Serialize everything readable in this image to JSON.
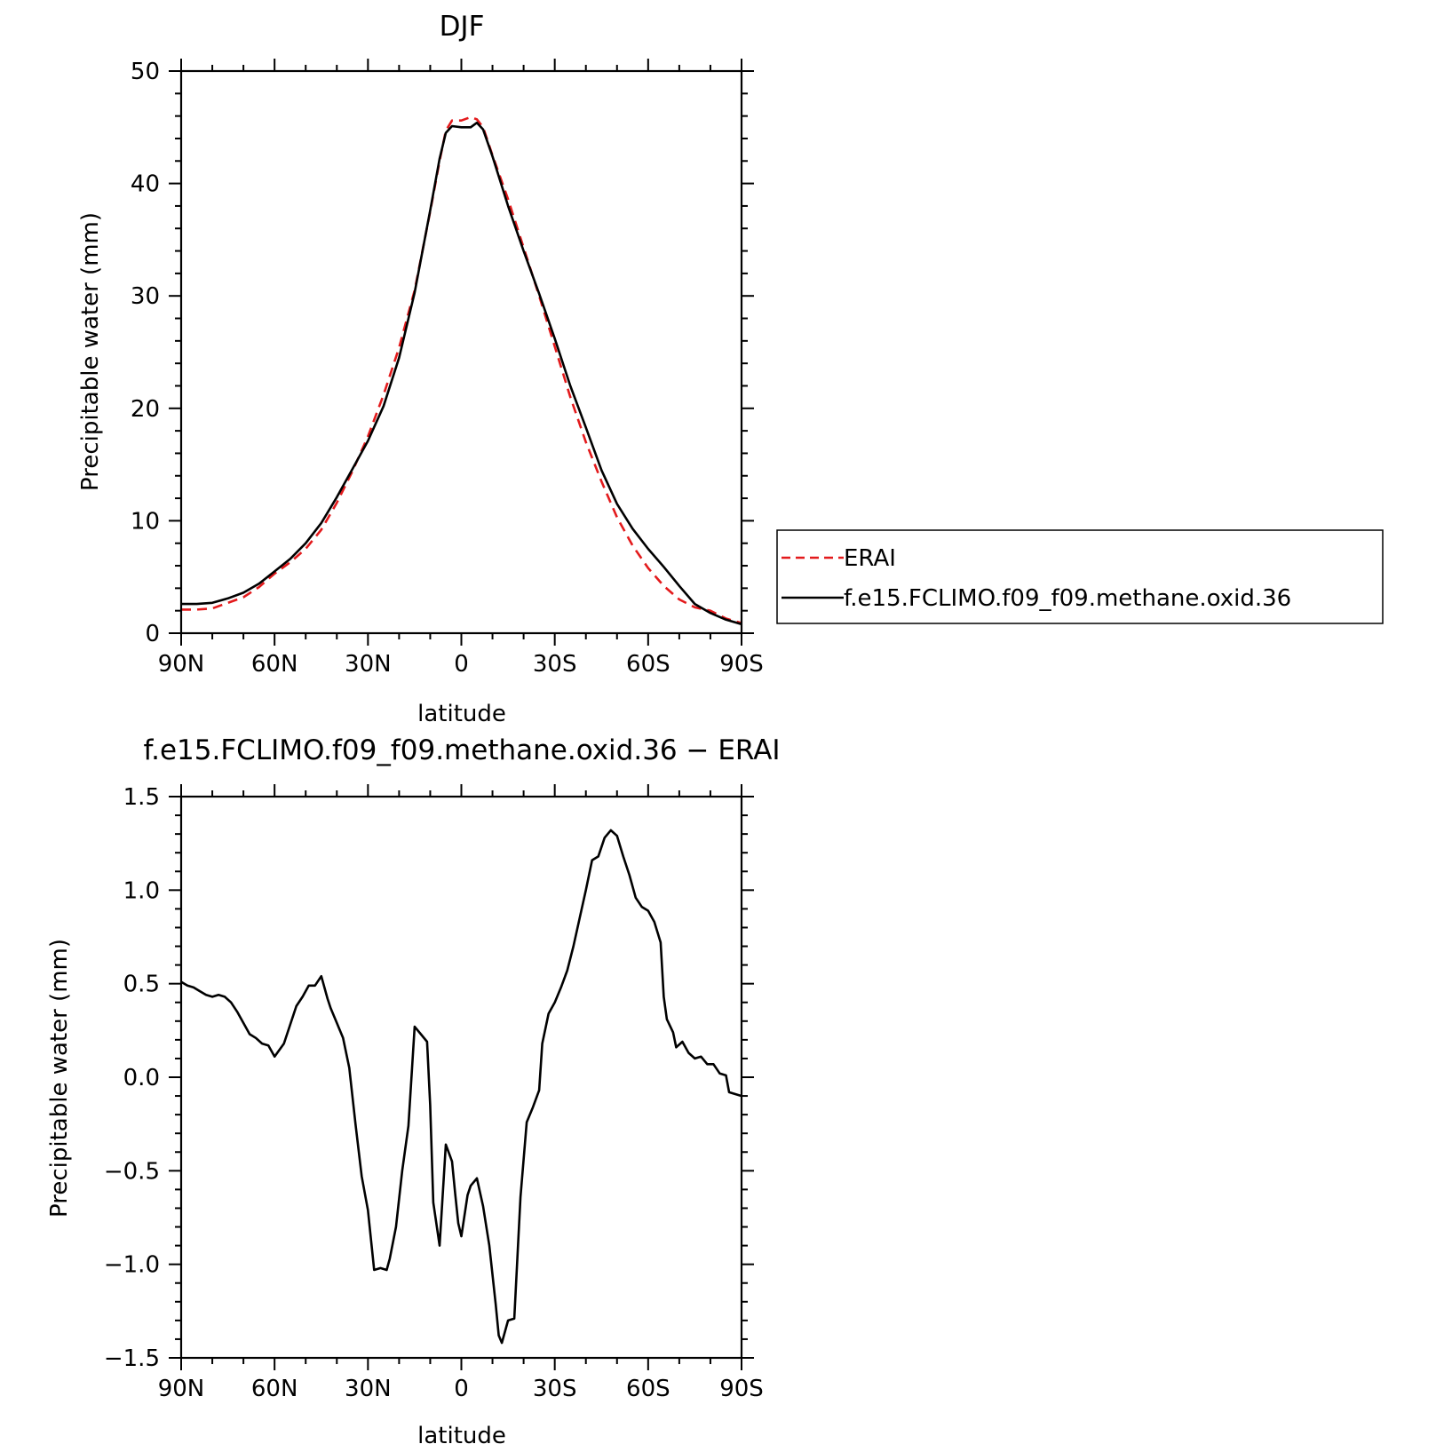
{
  "chart_data": [
    {
      "type": "line",
      "title": "DJF",
      "xlabel": "latitude",
      "ylabel": "Precipitable water (mm)",
      "xlim": [
        90,
        -90
      ],
      "ylim": [
        0,
        50
      ],
      "x_ticks": [
        90,
        60,
        30,
        0,
        -30,
        -60,
        -90
      ],
      "x_tick_labels": [
        "90N",
        "60N",
        "30N",
        "0",
        "30S",
        "60S",
        "90S"
      ],
      "y_ticks": [
        0,
        10,
        20,
        30,
        40,
        50
      ],
      "y_tick_labels": [
        "0",
        "10",
        "20",
        "30",
        "40",
        "50"
      ],
      "legend_position": "right",
      "series": [
        {
          "name": "ERAI",
          "color": "#e31a1c",
          "dash": "dashed",
          "x": [
            90,
            85,
            80,
            75,
            70,
            65,
            60,
            55,
            50,
            45,
            40,
            35,
            30,
            25,
            20,
            15,
            10,
            7,
            5,
            3,
            0,
            -3,
            -5,
            -7,
            -10,
            -15,
            -20,
            -25,
            -30,
            -35,
            -40,
            -45,
            -50,
            -55,
            -60,
            -65,
            -70,
            -75,
            -80,
            -85,
            -90
          ],
          "y": [
            2.1,
            2.1,
            2.2,
            2.7,
            3.2,
            4.1,
            5.3,
            6.3,
            7.5,
            9.2,
            11.6,
            14.4,
            17.5,
            21.2,
            25.4,
            30.5,
            37.5,
            42.0,
            44.7,
            45.6,
            45.6,
            45.9,
            45.7,
            45.0,
            42.5,
            38.6,
            34.3,
            30.0,
            25.5,
            21.0,
            17.0,
            13.5,
            10.3,
            7.8,
            5.8,
            4.2,
            3.0,
            2.3,
            2.0,
            1.3,
            0.9
          ]
        },
        {
          "name": "f.e15.FCLIMO.f09_f09.methane.oxid.36",
          "color": "#000000",
          "dash": "solid",
          "x": [
            90,
            85,
            80,
            75,
            70,
            65,
            60,
            55,
            50,
            45,
            40,
            35,
            30,
            25,
            20,
            15,
            10,
            7,
            5,
            3,
            0,
            -3,
            -5,
            -7,
            -10,
            -15,
            -20,
            -25,
            -30,
            -35,
            -40,
            -45,
            -50,
            -55,
            -60,
            -65,
            -70,
            -75,
            -80,
            -85,
            -90
          ],
          "y": [
            2.6,
            2.6,
            2.7,
            3.1,
            3.6,
            4.4,
            5.5,
            6.6,
            8.0,
            9.8,
            12.1,
            14.6,
            17.1,
            20.2,
            24.5,
            30.3,
            37.6,
            42.2,
            44.5,
            45.1,
            45.0,
            45.0,
            45.4,
            44.8,
            42.4,
            38.0,
            34.0,
            30.2,
            26.2,
            22.0,
            18.3,
            14.5,
            11.5,
            9.3,
            7.5,
            5.9,
            4.2,
            2.6,
            1.8,
            1.2,
            0.8
          ]
        }
      ]
    },
    {
      "type": "line",
      "title": "f.e15.FCLIMO.f09_f09.methane.oxid.36 − ERAI",
      "xlabel": "latitude",
      "ylabel": "Precipitable water (mm)",
      "xlim": [
        90,
        -90
      ],
      "ylim": [
        -1.5,
        1.5
      ],
      "x_ticks": [
        90,
        60,
        30,
        0,
        -30,
        -60,
        -90
      ],
      "x_tick_labels": [
        "90N",
        "60N",
        "30N",
        "0",
        "30S",
        "60S",
        "90S"
      ],
      "y_ticks": [
        1.5,
        1.0,
        0.5,
        0.0,
        -0.5,
        -1.0,
        -1.5
      ],
      "y_tick_labels": [
        "1.5",
        "1.0",
        "0.5",
        "0.0",
        "−0.5",
        "−1.0",
        "−1.5"
      ],
      "series": [
        {
          "color": "#000000",
          "dash": "solid",
          "x": [
            90,
            88,
            86,
            84,
            82,
            80,
            78,
            76,
            74,
            72,
            70,
            68,
            66,
            64,
            62,
            60,
            57,
            55,
            53,
            51,
            49,
            47,
            45,
            43,
            42,
            40,
            38,
            36,
            34,
            32,
            30,
            28,
            26,
            24,
            23,
            21,
            19,
            17,
            15,
            13,
            11,
            10,
            9,
            7,
            5,
            3,
            2,
            1,
            0,
            -2,
            -3,
            -5,
            -7,
            -9,
            -11,
            -12,
            -13,
            -15,
            -17,
            -19,
            -21,
            -23,
            -25,
            -26,
            -28,
            -30,
            -32,
            -34,
            -36,
            -38,
            -40,
            -42,
            -44,
            -46,
            -48,
            -50,
            -52,
            -54,
            -56,
            -58,
            -60,
            -62,
            -64,
            -65,
            -66,
            -68,
            -69,
            -71,
            -73,
            -75,
            -77,
            -79,
            -81,
            -83,
            -85,
            -86,
            -88,
            -90
          ],
          "y": [
            0.51,
            0.49,
            0.48,
            0.46,
            0.44,
            0.43,
            0.44,
            0.43,
            0.4,
            0.35,
            0.29,
            0.23,
            0.21,
            0.18,
            0.17,
            0.11,
            0.18,
            0.28,
            0.38,
            0.43,
            0.49,
            0.49,
            0.54,
            0.42,
            0.37,
            0.29,
            0.21,
            0.05,
            -0.25,
            -0.53,
            -0.71,
            -1.03,
            -1.02,
            -1.03,
            -0.97,
            -0.8,
            -0.5,
            -0.26,
            0.27,
            0.23,
            0.19,
            -0.15,
            -0.67,
            -0.9,
            -0.36,
            -0.45,
            -0.62,
            -0.78,
            -0.85,
            -0.63,
            -0.58,
            -0.54,
            -0.69,
            -0.9,
            -1.21,
            -1.38,
            -1.42,
            -1.3,
            -1.29,
            -0.64,
            -0.24,
            -0.16,
            -0.07,
            0.18,
            0.34,
            0.4,
            0.48,
            0.57,
            0.7,
            0.85,
            1.0,
            1.16,
            1.18,
            1.28,
            1.32,
            1.29,
            1.18,
            1.08,
            0.96,
            0.91,
            0.89,
            0.83,
            0.72,
            0.43,
            0.31,
            0.24,
            0.16,
            0.19,
            0.13,
            0.1,
            0.11,
            0.07,
            0.07,
            0.02,
            0.01,
            -0.08,
            -0.09,
            -0.1
          ]
        }
      ]
    }
  ]
}
